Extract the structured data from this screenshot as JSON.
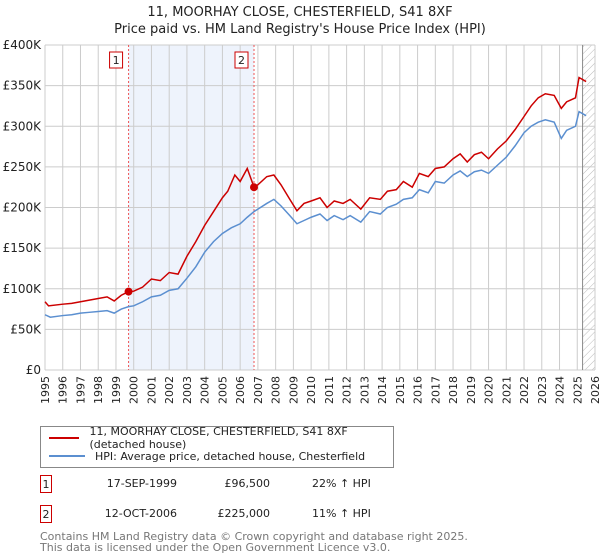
{
  "chart_data": {
    "type": "line",
    "title": "11, MOORHAY CLOSE, CHESTERFIELD, S41 8XF",
    "subtitle": "Price paid vs. HM Land Registry's House Price Index (HPI)",
    "xlim": [
      1995,
      2026
    ],
    "ylim": [
      0,
      400000
    ],
    "x_ticks": [
      "1995",
      "1996",
      "1997",
      "1998",
      "1999",
      "2000",
      "2001",
      "2002",
      "2003",
      "2004",
      "2005",
      "2006",
      "2007",
      "2008",
      "2009",
      "2010",
      "2011",
      "2012",
      "2013",
      "2014",
      "2015",
      "2016",
      "2017",
      "2018",
      "2019",
      "2020",
      "2021",
      "2022",
      "2023",
      "2024",
      "2025",
      "2026"
    ],
    "y_ticks": [
      {
        "v": 0,
        "label": "£0"
      },
      {
        "v": 50000,
        "label": "£50K"
      },
      {
        "v": 100000,
        "label": "£100K"
      },
      {
        "v": 150000,
        "label": "£150K"
      },
      {
        "v": 200000,
        "label": "£200K"
      },
      {
        "v": 250000,
        "label": "£250K"
      },
      {
        "v": 300000,
        "label": "£300K"
      },
      {
        "v": 350000,
        "label": "£350K"
      },
      {
        "v": 400000,
        "label": "£400K"
      }
    ],
    "grid": true,
    "shaded_range": [
      1999.71,
      2006.78
    ],
    "hatched_from": 2025.3,
    "series": [
      {
        "name": "11, MOORHAY CLOSE, CHESTERFIELD, S41 8XF (detached house)",
        "color": "#cc0000",
        "x": [
          1995,
          1995.2,
          1996,
          1996.5,
          1997,
          1997.5,
          1998,
          1998.5,
          1998.9,
          1999.3,
          1999.71,
          2000,
          2000.5,
          2001,
          2001.5,
          2002,
          2002.5,
          2003,
          2003.5,
          2004,
          2004.5,
          2005,
          2005.3,
          2005.7,
          2006,
          2006.4,
          2006.6,
          2006.78,
          2007,
          2007.5,
          2007.9,
          2008.3,
          2008.8,
          2009.2,
          2009.6,
          2010,
          2010.5,
          2010.9,
          2011.3,
          2011.8,
          2012.2,
          2012.8,
          2013.3,
          2013.9,
          2014.3,
          2014.8,
          2015.2,
          2015.7,
          2016.1,
          2016.6,
          2017,
          2017.5,
          2018,
          2018.4,
          2018.8,
          2019.2,
          2019.6,
          2020,
          2020.5,
          2021,
          2021.5,
          2022,
          2022.4,
          2022.8,
          2023.2,
          2023.7,
          2024.1,
          2024.4,
          2024.9,
          2025.1,
          2025.5
        ],
        "y": [
          84000,
          79000,
          81000,
          82000,
          84000,
          86000,
          88000,
          90000,
          85000,
          92000,
          96500,
          97000,
          102000,
          112000,
          110000,
          120000,
          118000,
          140000,
          158000,
          178000,
          195000,
          212000,
          220000,
          240000,
          232000,
          248000,
          236000,
          225000,
          228000,
          238000,
          240000,
          228000,
          210000,
          196000,
          205000,
          208000,
          212000,
          200000,
          208000,
          205000,
          210000,
          198000,
          212000,
          210000,
          220000,
          222000,
          232000,
          225000,
          242000,
          238000,
          248000,
          250000,
          260000,
          266000,
          256000,
          265000,
          268000,
          260000,
          272000,
          282000,
          296000,
          312000,
          325000,
          335000,
          340000,
          338000,
          322000,
          330000,
          335000,
          360000,
          355000
        ]
      },
      {
        "name": "HPI: Average price, detached house, Chesterfield",
        "color": "#5b8fd0",
        "x": [
          1995,
          1995.3,
          1996,
          1996.5,
          1997,
          1997.5,
          1998,
          1998.5,
          1998.9,
          1999.3,
          1999.71,
          2000,
          2000.5,
          2001,
          2001.5,
          2002,
          2002.5,
          2003,
          2003.5,
          2004,
          2004.5,
          2005,
          2005.5,
          2006,
          2006.4,
          2006.78,
          2007,
          2007.5,
          2007.9,
          2008.3,
          2008.8,
          2009.2,
          2009.6,
          2010,
          2010.5,
          2010.9,
          2011.3,
          2011.8,
          2012.2,
          2012.8,
          2013.3,
          2013.9,
          2014.3,
          2014.8,
          2015.2,
          2015.7,
          2016.1,
          2016.6,
          2017,
          2017.5,
          2018,
          2018.4,
          2018.8,
          2019.2,
          2019.6,
          2020,
          2020.5,
          2021,
          2021.5,
          2022,
          2022.4,
          2022.8,
          2023.2,
          2023.7,
          2024.1,
          2024.4,
          2024.9,
          2025.1,
          2025.5
        ],
        "y": [
          68000,
          65000,
          67000,
          68000,
          70000,
          71000,
          72000,
          73000,
          70000,
          75000,
          78000,
          79000,
          84000,
          90000,
          92000,
          98000,
          100000,
          113000,
          127000,
          145000,
          158000,
          168000,
          175000,
          180000,
          188000,
          195000,
          198000,
          205000,
          210000,
          202000,
          190000,
          180000,
          184000,
          188000,
          192000,
          184000,
          190000,
          185000,
          190000,
          182000,
          195000,
          192000,
          200000,
          204000,
          210000,
          212000,
          222000,
          218000,
          232000,
          230000,
          240000,
          245000,
          238000,
          244000,
          246000,
          242000,
          252000,
          262000,
          276000,
          292000,
          300000,
          305000,
          308000,
          305000,
          285000,
          295000,
          300000,
          318000,
          313000
        ]
      }
    ],
    "sales": [
      {
        "num": "1",
        "x": 1999.71,
        "y": 96500,
        "date": "17-SEP-1999",
        "price": "£96,500",
        "hpi": "22% ↑ HPI"
      },
      {
        "num": "2",
        "x": 2006.78,
        "y": 225000,
        "date": "12-OCT-2006",
        "price": "£225,000",
        "hpi": "11% ↑ HPI"
      }
    ]
  },
  "footer": {
    "line1": "Contains HM Land Registry data © Crown copyright and database right 2025.",
    "line2": "This data is licensed under the Open Government Licence v3.0."
  }
}
